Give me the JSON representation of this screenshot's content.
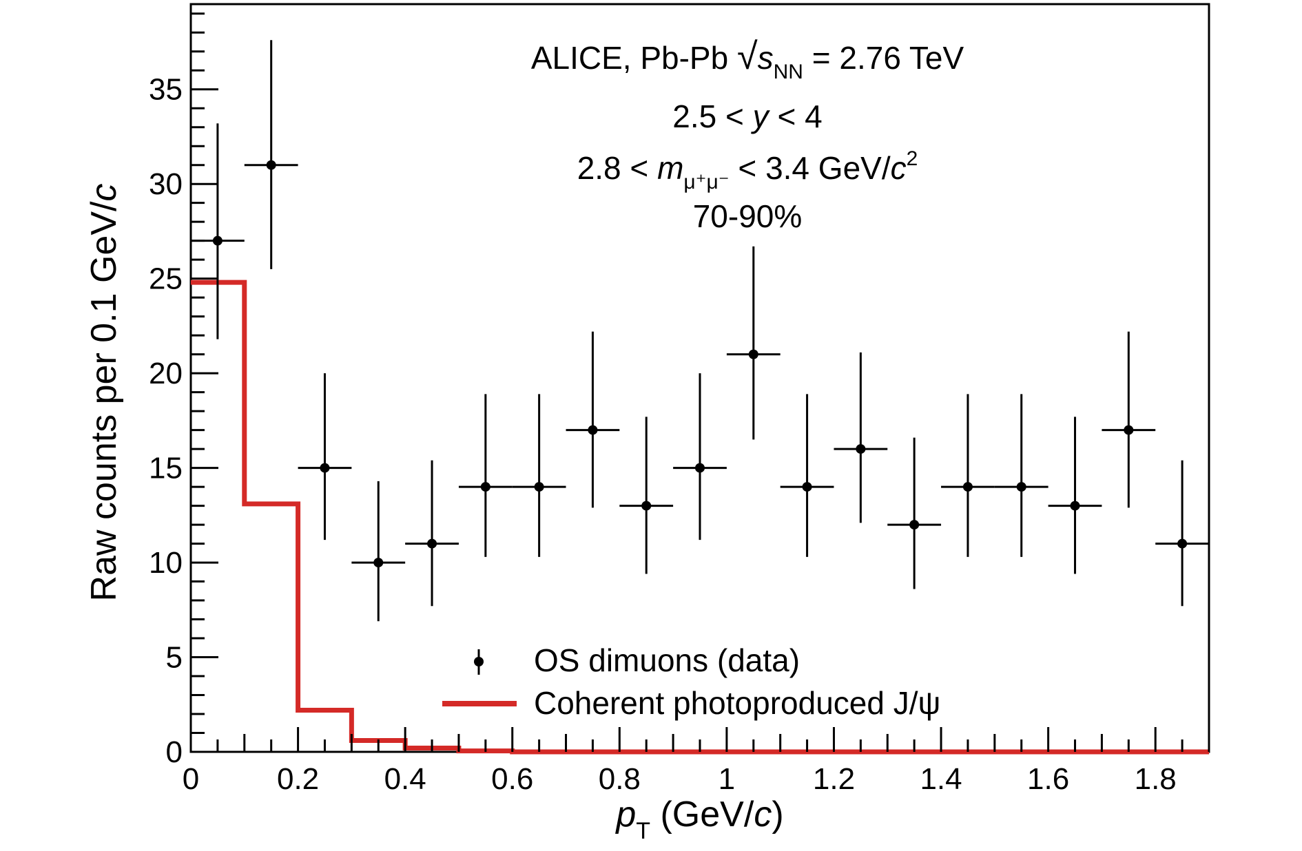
{
  "chart_data": {
    "type": "scatter",
    "title": "",
    "annotations": [
      {
        "parts": [
          {
            "t": "ALICE, Pb-Pb "
          },
          {
            "t": "√",
            "style": "sqrt"
          },
          {
            "t": "s",
            "style": "italic"
          },
          {
            "t": "NN",
            "style": "sub"
          },
          {
            "t": " = 2.76 TeV"
          }
        ]
      },
      {
        "parts": [
          {
            "t": "2.5 < "
          },
          {
            "t": "y",
            "style": "italic"
          },
          {
            "t": " < 4"
          }
        ]
      },
      {
        "parts": [
          {
            "t": "2.8 < "
          },
          {
            "t": "m",
            "style": "italic"
          },
          {
            "t": "μ⁺μ⁻",
            "style": "sub"
          },
          {
            "t": " < 3.4 GeV/"
          },
          {
            "t": "c",
            "style": "italic"
          },
          {
            "t": "2",
            "style": "sup"
          }
        ]
      },
      {
        "parts": [
          {
            "t": "70-90%"
          }
        ]
      }
    ],
    "xlabel": {
      "main": "p",
      "sub": "T",
      "rest": " (GeV/",
      "italic_c": "c",
      "close": ")"
    },
    "ylabel": {
      "main": "Raw counts per 0.1 GeV/",
      "italic_c": "c"
    },
    "xlim": [
      0,
      1.9
    ],
    "ylim": [
      0,
      39.5
    ],
    "xticks": [
      0,
      0.2,
      0.4,
      0.6,
      0.8,
      1,
      1.2,
      1.4,
      1.6,
      1.8
    ],
    "xtick_labels": [
      "0",
      "0.2",
      "0.4",
      "0.6",
      "0.8",
      "1",
      "1.2",
      "1.4",
      "1.6",
      "1.8"
    ],
    "x_minor_step": 0.05,
    "yticks": [
      0,
      5,
      10,
      15,
      20,
      25,
      30,
      35
    ],
    "ytick_labels": [
      "0",
      "5",
      "10",
      "15",
      "20",
      "25",
      "30",
      "35"
    ],
    "y_minor_step": 1,
    "grid": false,
    "legend": {
      "placement": "bottom-center",
      "entries": [
        {
          "label": "OS dimuons (data)",
          "marker": "point-with-error"
        },
        {
          "label": "Coherent photoproduced J/ψ",
          "marker": "line"
        }
      ]
    },
    "series": [
      {
        "name": "OS dimuons (data)",
        "kind": "points",
        "color": "#000000",
        "bin_half_width": 0.05,
        "x": [
          0.05,
          0.15,
          0.25,
          0.35,
          0.45,
          0.55,
          0.65,
          0.75,
          0.85,
          0.95,
          1.05,
          1.15,
          1.25,
          1.35,
          1.45,
          1.55,
          1.65,
          1.75,
          1.85
        ],
        "y": [
          27,
          31,
          15,
          10,
          11,
          14,
          14,
          17,
          13,
          15,
          21,
          14,
          16,
          12,
          14,
          14,
          13,
          17,
          11
        ],
        "y_err_low": [
          5.2,
          5.5,
          3.8,
          3.1,
          3.3,
          3.7,
          3.7,
          4.1,
          3.6,
          3.8,
          4.5,
          3.7,
          3.9,
          3.4,
          3.7,
          3.7,
          3.6,
          4.1,
          3.3
        ],
        "y_err_high": [
          6.2,
          6.6,
          5.0,
          4.3,
          4.4,
          4.9,
          4.9,
          5.2,
          4.7,
          5.0,
          5.7,
          4.9,
          5.1,
          4.6,
          4.9,
          4.9,
          4.7,
          5.2,
          4.4
        ]
      },
      {
        "name": "Coherent photoproduced J/ψ",
        "kind": "histogram",
        "color": "#d42a27",
        "bin_edges": [
          0,
          0.1,
          0.2,
          0.3,
          0.4,
          0.5,
          0.6,
          0.7,
          0.8,
          0.9,
          1.0,
          1.1,
          1.2,
          1.3,
          1.4,
          1.5,
          1.6,
          1.7,
          1.8,
          1.9
        ],
        "values": [
          24.8,
          13.1,
          2.2,
          0.6,
          0.2,
          0.05,
          0,
          0,
          0,
          0,
          0,
          0,
          0,
          0,
          0,
          0,
          0,
          0,
          0
        ]
      }
    ]
  }
}
